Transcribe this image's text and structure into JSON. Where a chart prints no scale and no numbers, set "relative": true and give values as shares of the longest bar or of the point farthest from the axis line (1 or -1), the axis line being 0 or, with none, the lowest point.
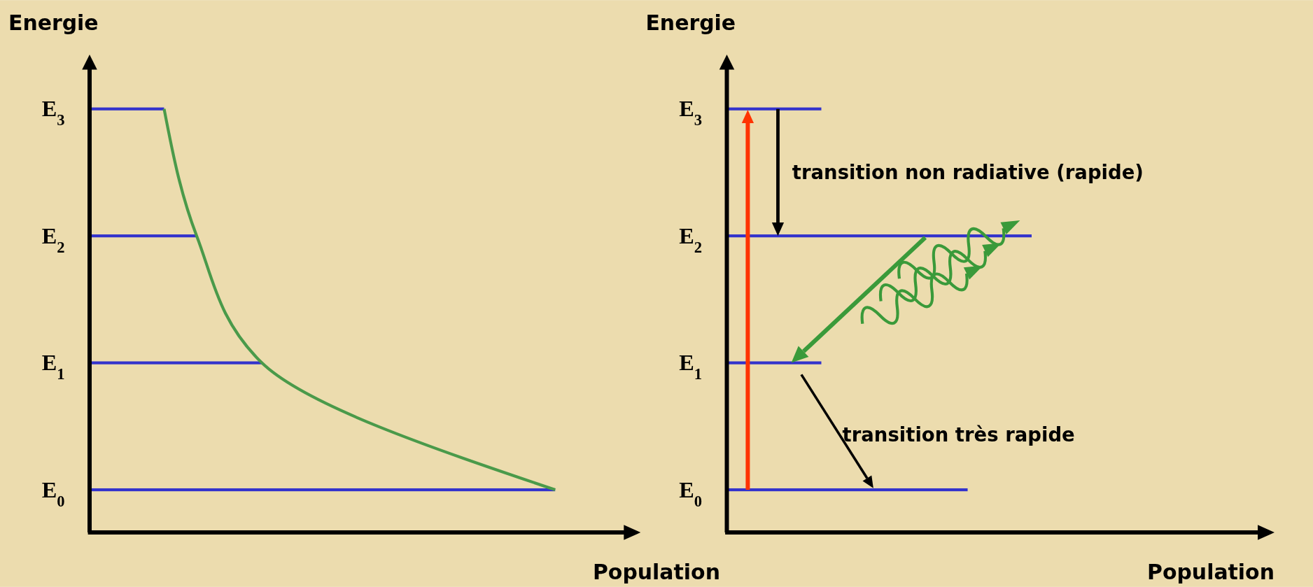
{
  "chart_data": [
    {
      "type": "bar",
      "orientation": "horizontal",
      "relative": true,
      "ylabel": "Energie",
      "xlabel": "Population",
      "categories": [
        "E$_{3}$",
        "E$_{2}$",
        "E$_{1}$",
        "E$_{0}$"
      ],
      "series": [
        {
          "values": [
            0.16,
            0.23,
            0.37,
            1
          ],
          "color": "#3333cc"
        },
        {
          "type": "line",
          "values": [
            0.16,
            0.23,
            0.37,
            1
          ],
          "color": "#4a9a4a"
        }
      ]
    },
    {
      "type": "bar",
      "orientation": "horizontal",
      "relative": true,
      "ylabel": "Energie",
      "xlabel": "Population",
      "categories": [
        "E$_{3}$",
        "E$_{2}$",
        "E$_{1}$",
        "E$_{0}$"
      ],
      "series": [
        {
          "values": [
            0.31,
            1,
            0.31,
            0.79
          ],
          "color": "#3333cc"
        }
      ],
      "annotations": [
        "transition non radiative (rapide)",
        "transition très rapide"
      ]
    }
  ]
}
